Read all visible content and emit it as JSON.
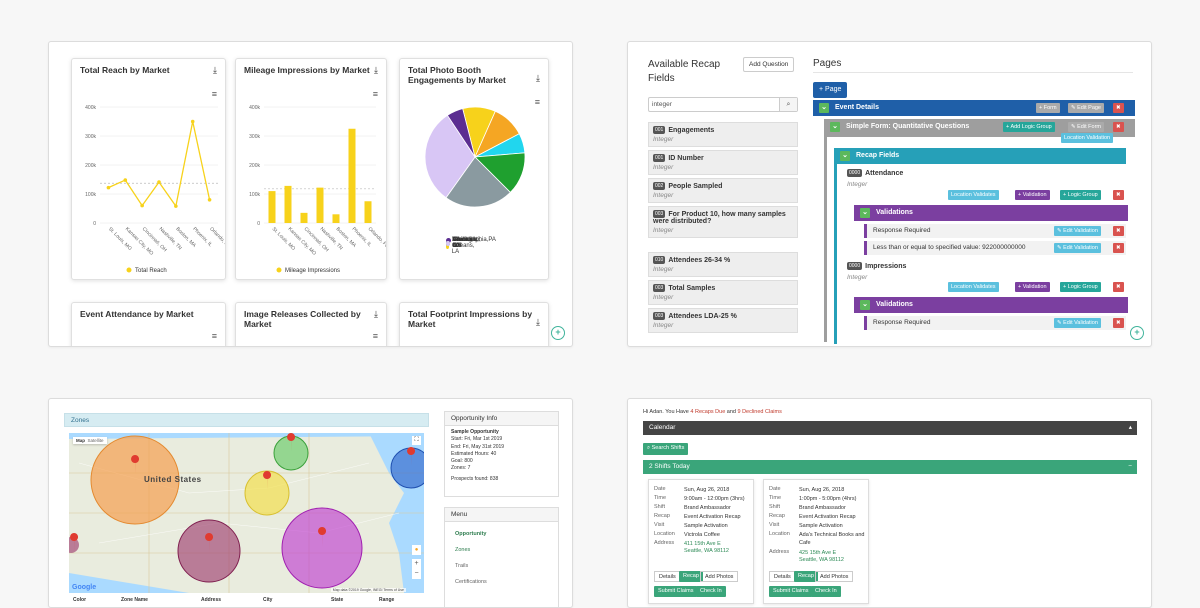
{
  "tile1": {
    "cards": {
      "reach": {
        "title": "Total Reach by Market"
      },
      "mileage": {
        "title": "Mileage Impressions by Market"
      },
      "photo": {
        "title": "Total Photo Booth Engagements by Market"
      },
      "attendance": {
        "title": "Event Attendance by Market"
      },
      "images": {
        "title": "Image Releases Collected by Market"
      },
      "footprint": {
        "title": "Total Footprint Impressions by Market"
      }
    },
    "download_icon": "download-icon",
    "menu_icon": "hamburger-icon"
  },
  "chart_data": [
    {
      "type": "line",
      "title": "Total Reach by Market",
      "categories": [
        "St. Louis, MO",
        "Kansas City, MO",
        "Cincinnati, OH",
        "Nashville, TN",
        "Boston, MA",
        "Phoenix, IL",
        "Orlando, FL"
      ],
      "series": [
        {
          "name": "Total Reach",
          "values": [
            122000,
            148000,
            60000,
            141000,
            58000,
            350000,
            80000
          ]
        }
      ],
      "yticks": [
        "400k",
        "300k",
        "200k",
        "100k",
        "0"
      ],
      "ylim": [
        0,
        400000
      ],
      "legend": "bottom"
    },
    {
      "type": "bar",
      "title": "Mileage Impressions by Market",
      "categories": [
        "St. Louis, MO",
        "Kansas City, MO",
        "Cincinnati, OH",
        "Nashville, TN",
        "Boston, MA",
        "Phoenix, IL",
        "Orlando, FL"
      ],
      "series": [
        {
          "name": "Mileage Impressions",
          "values": [
            110000,
            128000,
            35000,
            122000,
            30000,
            325000,
            75000
          ]
        }
      ],
      "yticks": [
        "400k",
        "300k",
        "200k",
        "100k",
        "0"
      ],
      "ylim": [
        0,
        400000
      ],
      "legend": "bottom"
    },
    {
      "type": "pie",
      "title": "Total Photo Booth Engagements by Market",
      "categories": [
        "Philadelphia,PA",
        "New Orleans, LA",
        "Brooklyn, NY",
        "Nashville, TN",
        "Chicago, IL",
        "Cincinnati, OH",
        "Atlanta, GA"
      ],
      "values": [
        1,
        2,
        2,
        1.2,
        2.6,
        4.2,
        5.8
      ],
      "colors": [
        "#5b2d91",
        "#f7d21b",
        "#f5a623",
        "#21d6ee",
        "#1fa02f",
        "#8a9aa0",
        "#d8c6f5"
      ],
      "legend": "bottom"
    }
  ],
  "tile2": {
    "heading": "Available Recap Fields",
    "add_question": "Add Question",
    "search_value": "integer",
    "fields": [
      {
        "tag": "001",
        "label": "Engagements",
        "type": "Integer"
      },
      {
        "tag": "001",
        "label": "ID Number",
        "type": "Integer"
      },
      {
        "tag": "002",
        "label": "People Sampled",
        "type": "Integer"
      },
      {
        "tag": "003",
        "label": "For Product 10, how many samples were distributed?",
        "type": "Integer"
      },
      {
        "tag": "010",
        "label": "Attendees 26-34 %",
        "type": "Integer"
      },
      {
        "tag": "003",
        "label": "Total Samples",
        "type": "Integer"
      },
      {
        "tag": "003",
        "label": "Attendees LDA-25 %",
        "type": "Integer"
      }
    ],
    "pages_heading": "Pages",
    "add_page": "Page",
    "event_details": "Event Details",
    "form_btn": "Form",
    "edit_page": "Edit Page",
    "simple_form": "Simple Form: Quantitative Questions",
    "add_logic_group": "Add Logic Group",
    "edit_form": "Edit Form",
    "location_validation": "Location Validation",
    "recap_fields": "Recap Fields",
    "attendance": "Attendance",
    "impressions": "Impressions",
    "integer": "Integer",
    "location_validates": "Location Validates",
    "validation": "Validation",
    "logic_group": "Logic Group",
    "validations": "Validations",
    "response_required": "Response Required",
    "less_than": "Less than or equal to specified value: 922000000000",
    "edit_validation": "Edit Validation",
    "tag_attendance": "0000",
    "tag_impressions": "0000"
  },
  "tile3": {
    "zones_title": "Zones",
    "map_tab": "Map",
    "sat_tab": "Satellite",
    "country_label": "United States",
    "opp_title": "Opportunity Info",
    "opp_name": "Sample Opportunity",
    "opp_start": "Start: Fri, Mar 1st 2019",
    "opp_end": "End: Fri, May 31st 2019",
    "opp_hours": "Estimated Hours: 40",
    "opp_goal": "Goal: 800",
    "opp_zones": "Zones: 7",
    "opp_prospects": "Prospects found: 838",
    "menu_title": "Menu",
    "menu_items": [
      "Opportunity",
      "Zones",
      "Trails",
      "Certifications"
    ],
    "google": "Google",
    "mapdata": "Map data ©2019 Google, INEGI   Terms of Use",
    "columns": [
      "Color",
      "Zone Name",
      "Address",
      "City",
      "State",
      "Range"
    ]
  },
  "tile4": {
    "greeting_pre": "Hi Adan. You Have ",
    "recaps_due": "4 Recaps Due",
    "greeting_and": " and ",
    "declined": "9 Declined Claims",
    "calendar": "Calendar",
    "search_shifts": "Search Shifts",
    "shifts_today": "2 Shifts Today",
    "keys": [
      "Date",
      "Time",
      "Shift",
      "Recap",
      "Visit",
      "Location",
      "Address"
    ],
    "shifts": [
      {
        "date": "Sun, Aug 26, 2018",
        "time": "9:00am - 12:00pm (3hrs)",
        "shift": "Brand Ambassador",
        "recap": "Event Activation Recap",
        "visit": "Sample Activation",
        "location": "Victrola Coffee",
        "addr1": "411 15th Ave E",
        "addr2": "Seattle, WA 98112"
      },
      {
        "date": "Sun, Aug 26, 2018",
        "time": "1:00pm - 5:00pm (4hrs)",
        "shift": "Brand Ambassador",
        "recap": "Event Activation Recap",
        "visit": "Sample Activation",
        "location": "Ada's Technical Books and Cafe",
        "addr1": "425 15th Ave E",
        "addr2": "Seattle, WA 98112"
      }
    ],
    "details": "Details",
    "recap_btn": "Recap",
    "add_photos": "Add Photos",
    "submit_claims": "Submit Claims",
    "check_in": "Check In"
  }
}
